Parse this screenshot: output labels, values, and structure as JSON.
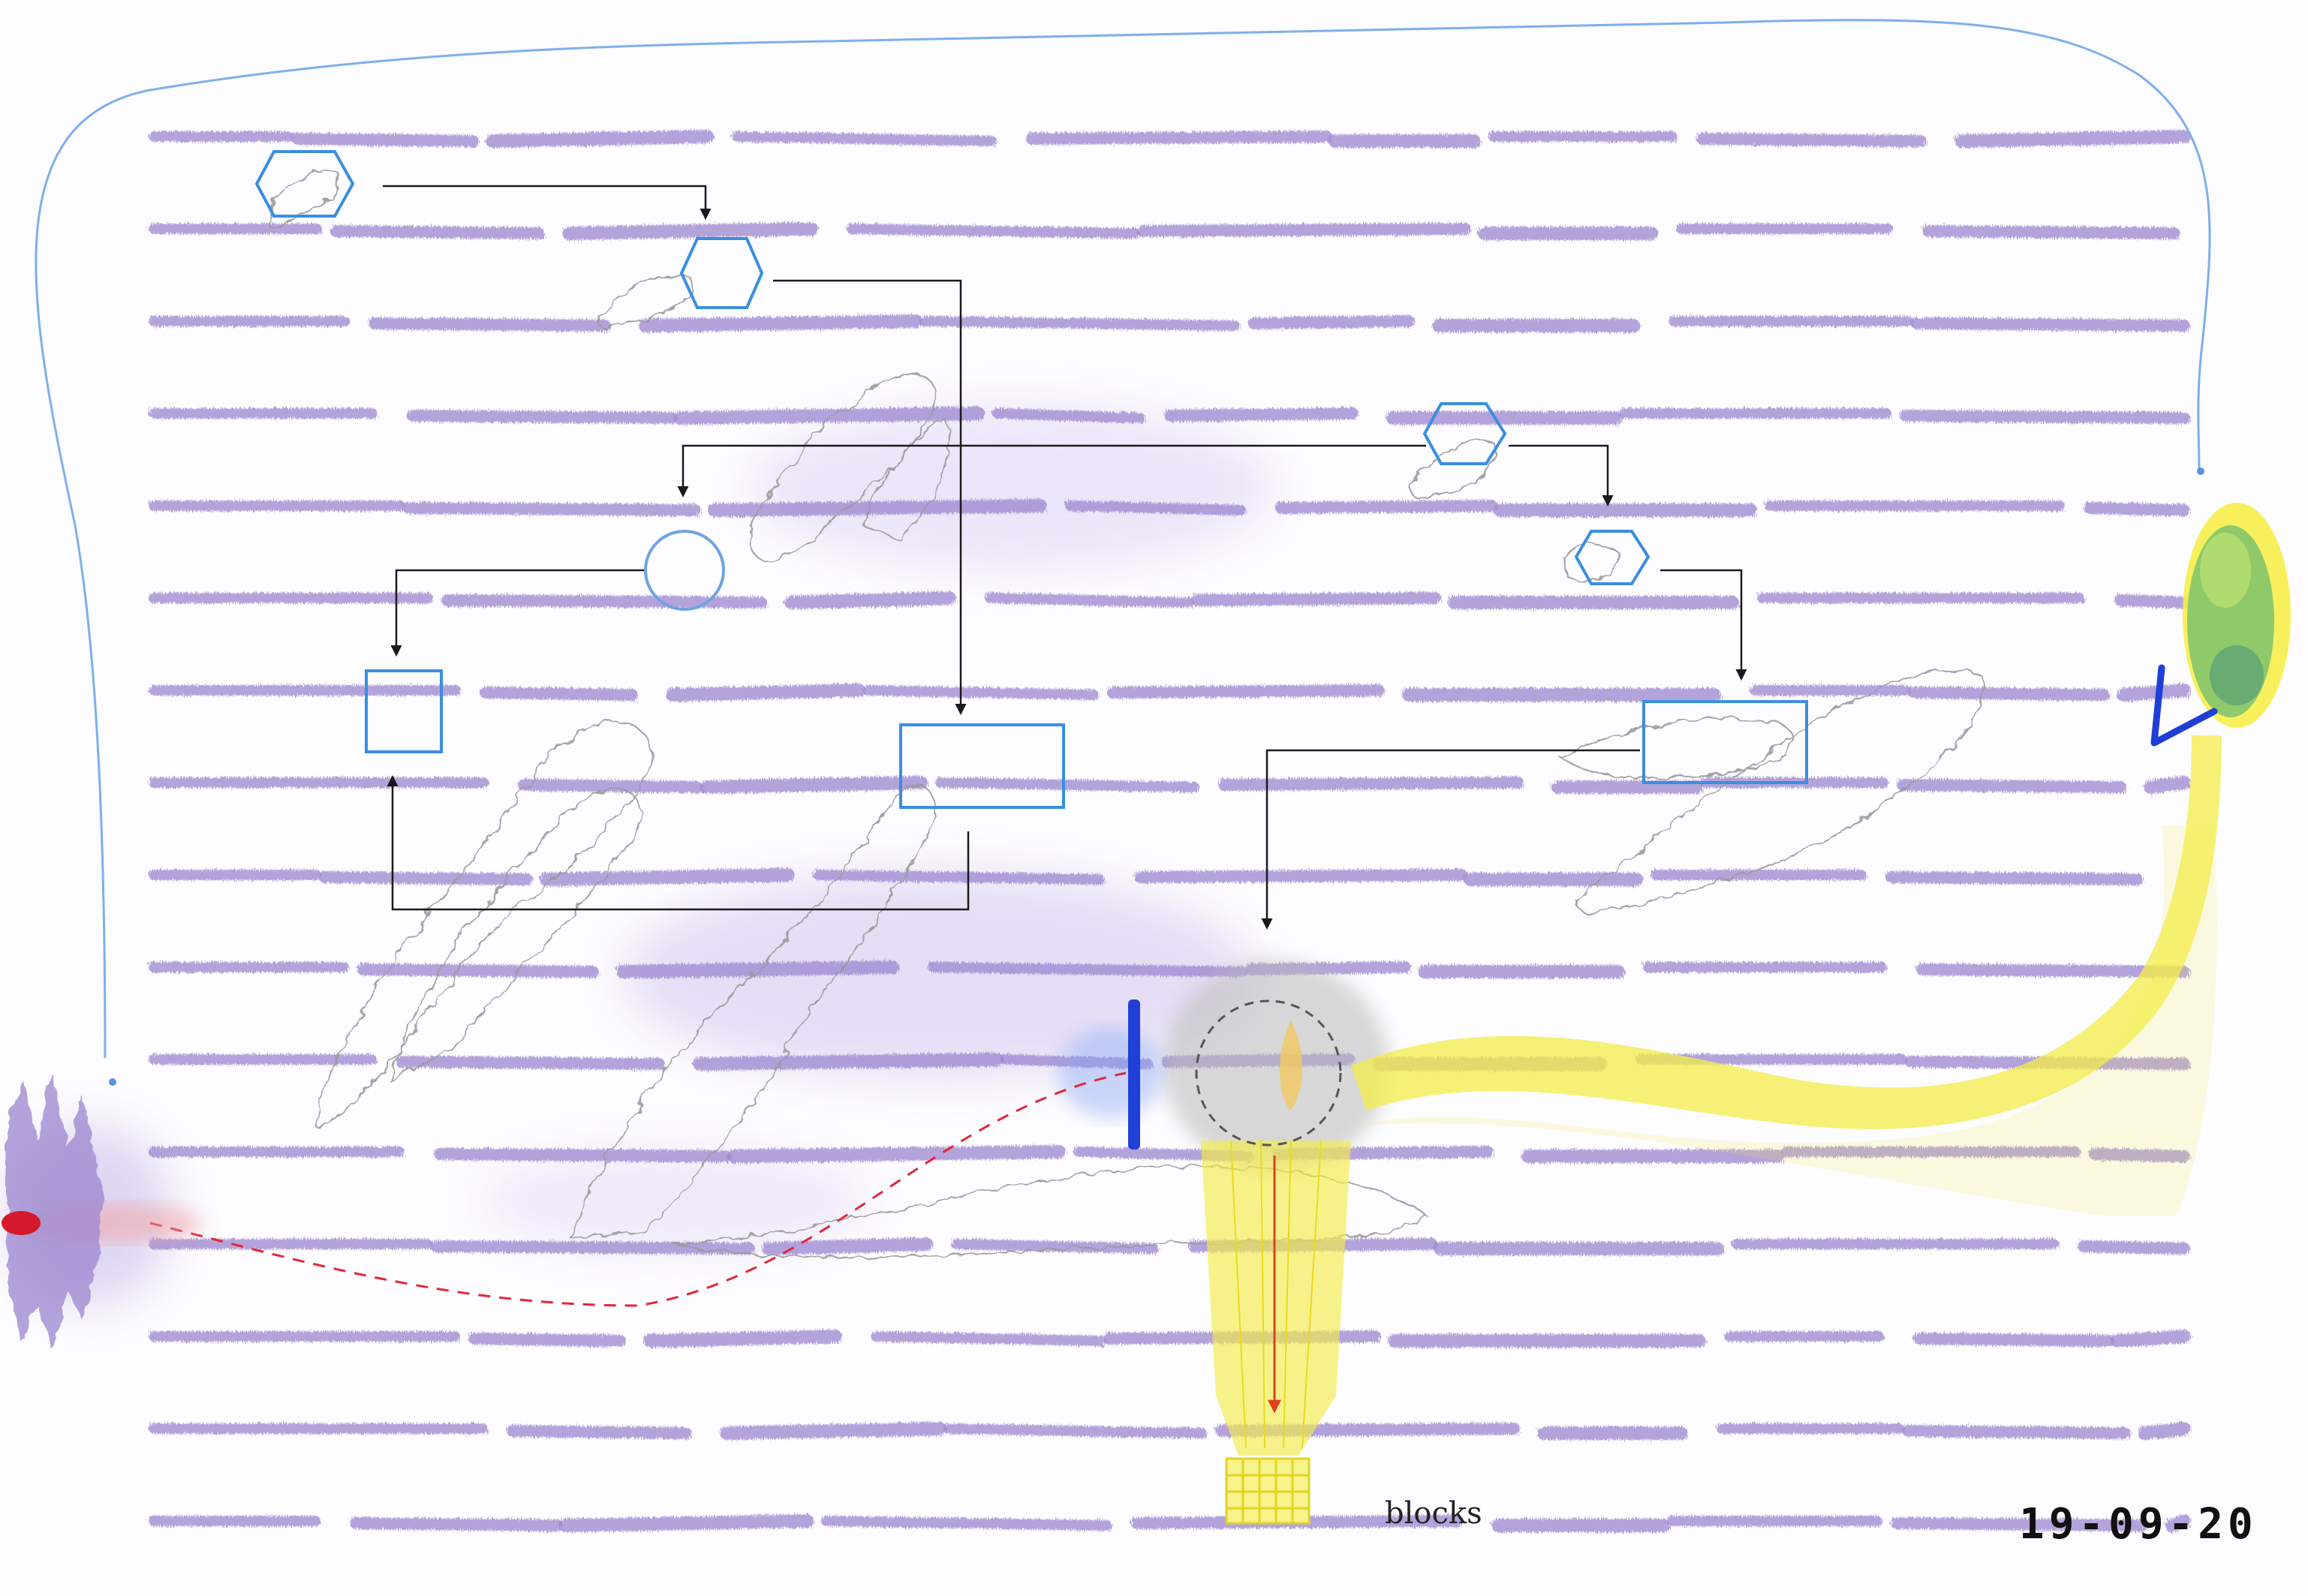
{
  "drawing": {
    "caption": "blocks",
    "date_stamp": "19-09-20"
  },
  "colors": {
    "paper": "#fdfcfe",
    "staff_lines": "#9b85cf",
    "outline_blue": "#6ea3e0",
    "shape_blue": "#3a8ee0",
    "connector": "#1a1a1a",
    "pencil": "#9a9a9a",
    "yellow": "#f2ea3c",
    "red": "#e0283a",
    "dark_blue": "#1f3fd6",
    "green_blob": "#8fc96a"
  },
  "staff_line_count": 16
}
